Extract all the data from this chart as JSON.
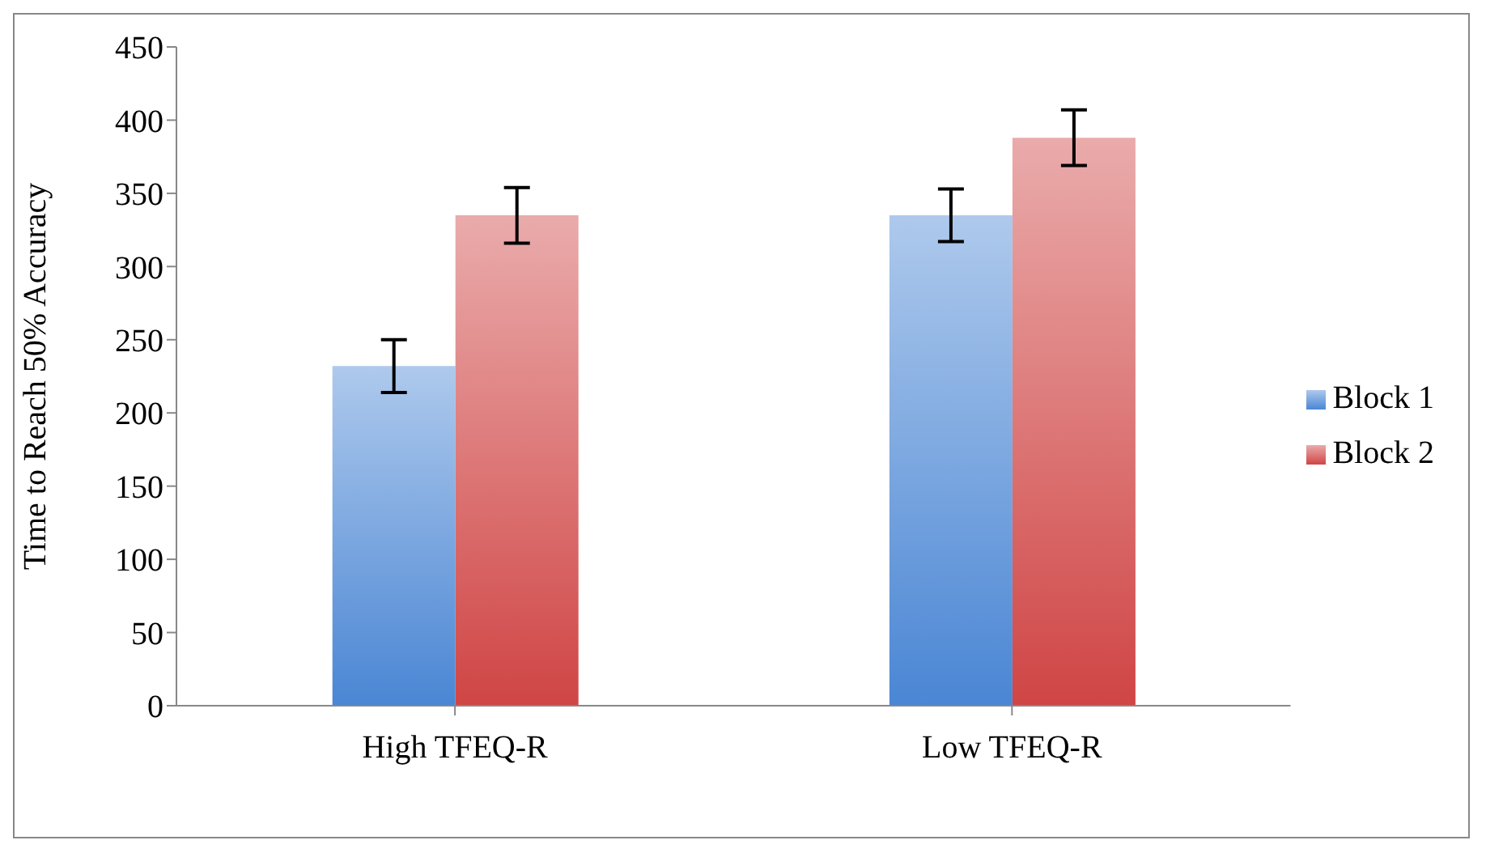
{
  "chart_data": {
    "type": "bar",
    "ylabel": "Time to Reach 50% Accuracy",
    "categories": [
      "High TFEQ-R",
      "Low TFEQ-R"
    ],
    "series": [
      {
        "name": "Block 1",
        "color": "#4a86d4",
        "values": [
          232,
          335
        ],
        "errors": [
          18,
          18
        ]
      },
      {
        "name": "Block 2",
        "color": "#d04545",
        "values": [
          335,
          388
        ],
        "errors": [
          19,
          19
        ]
      }
    ],
    "ylim": [
      0,
      450
    ],
    "yticks": [
      0,
      50,
      100,
      150,
      200,
      250,
      300,
      350,
      400,
      450
    ],
    "grid": false,
    "legend": "right"
  }
}
